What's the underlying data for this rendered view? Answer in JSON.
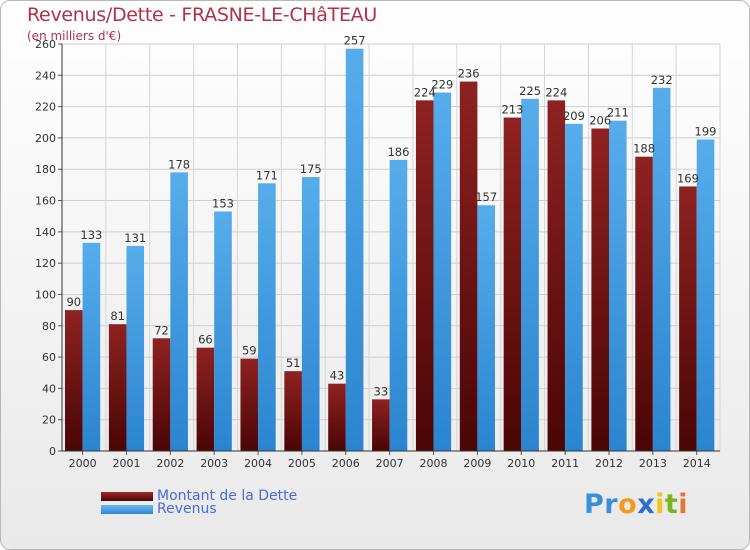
{
  "title": "Revenus/Dette - FRASNE-LE-CHâTEAU",
  "subtitle": "(en milliers d'€)",
  "chart_data": {
    "type": "bar",
    "categories": [
      "2000",
      "2001",
      "2002",
      "2003",
      "2004",
      "2005",
      "2006",
      "2007",
      "2008",
      "2009",
      "2010",
      "2011",
      "2012",
      "2013",
      "2014"
    ],
    "series": [
      {
        "name": "Montant de la Dette",
        "color": "#7a1515",
        "values": [
          90,
          81,
          72,
          66,
          59,
          51,
          43,
          33,
          224,
          236,
          213,
          224,
          206,
          188,
          169
        ]
      },
      {
        "name": "Revenus",
        "color": "#3d9be0",
        "values": [
          133,
          131,
          178,
          153,
          171,
          175,
          257,
          186,
          229,
          157,
          225,
          209,
          211,
          232,
          199
        ]
      }
    ],
    "yticks": [
      0,
      20,
      40,
      60,
      80,
      100,
      120,
      140,
      160,
      180,
      200,
      220,
      240,
      260
    ],
    "ylim": [
      0,
      260
    ],
    "grid": true,
    "legend_position": "bottom-left"
  },
  "legend": {
    "debt_label": "Montant de la Dette",
    "revenue_label": "Revenus"
  },
  "logo": {
    "letters": [
      "P",
      "r",
      "o",
      "x",
      "i",
      "t",
      "i"
    ],
    "colors": [
      "#3b8fd8",
      "#3b8fd8",
      "#f39a1e",
      "#2c6fcf",
      "#f0c419",
      "#7ab51d",
      "#e8762d"
    ]
  }
}
